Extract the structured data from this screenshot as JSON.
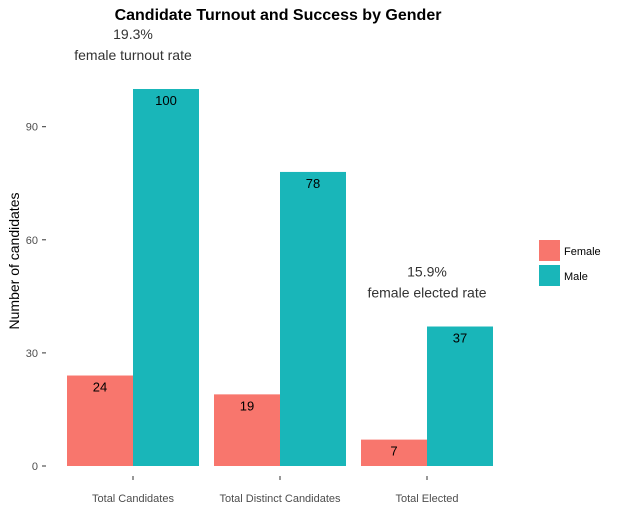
{
  "chart_data": {
    "type": "bar",
    "title": "Candidate Turnout and Success by Gender",
    "xlabel": "",
    "ylabel": "Number of candidates",
    "categories": [
      "Total Candidates",
      "Total Distinct Candidates",
      "Total Elected"
    ],
    "series": [
      {
        "name": "Female",
        "values": [
          24,
          19,
          7
        ],
        "color": "#F8766D"
      },
      {
        "name": "Male",
        "values": [
          100,
          78,
          37
        ],
        "color": "#19B6B9"
      }
    ],
    "yticks": [
      0,
      30,
      60,
      90
    ],
    "ylim": [
      0,
      105
    ],
    "grid": false,
    "legend": "right",
    "annotations": [
      {
        "category": "Total Candidates",
        "lines": [
          "19.3%",
          "female turnout rate"
        ]
      },
      {
        "category": "Total Elected",
        "lines": [
          "15.9%",
          "female elected rate"
        ]
      }
    ]
  }
}
